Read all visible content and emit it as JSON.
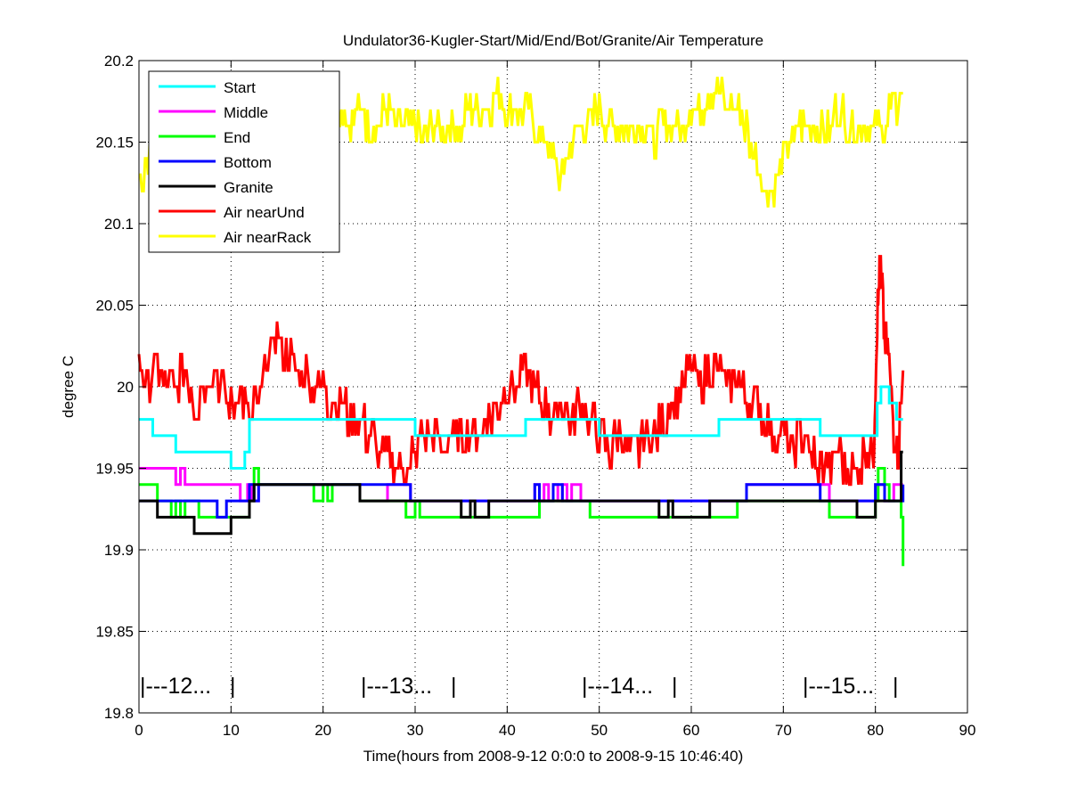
{
  "chart_data": {
    "type": "line",
    "title": "Undulator36-Kugler-Start/Mid/End/Bot/Granite/Air Temperature",
    "xlabel": "Time(hours from 2008-9-12 0:0:0 to 2008-9-15 10:46:40)",
    "ylabel": "degree C",
    "xlim": [
      0,
      90
    ],
    "ylim": [
      19.8,
      20.2
    ],
    "xticks": [
      "0",
      "10",
      "20",
      "30",
      "40",
      "50",
      "60",
      "70",
      "80",
      "90"
    ],
    "yticks": [
      "19.8",
      "19.85",
      "19.9",
      "19.95",
      "20",
      "20.05",
      "20.1",
      "20.15",
      "20.2"
    ],
    "grid": true,
    "legend_position": "top-left",
    "day_markers": [
      {
        "hour": 0,
        "label": "|---12...   |"
      },
      {
        "hour": 24,
        "label": "|---13...   |"
      },
      {
        "hour": 48,
        "label": "|---14...   |"
      },
      {
        "hour": 72,
        "label": "|---15...   |"
      }
    ],
    "series": [
      {
        "name": "Start",
        "color": "#00ffff",
        "style": "step",
        "points": [
          [
            0,
            19.98
          ],
          [
            1.5,
            19.97
          ],
          [
            4,
            19.96
          ],
          [
            10,
            19.95
          ],
          [
            11.5,
            19.96
          ],
          [
            12,
            19.98
          ],
          [
            30,
            19.97
          ],
          [
            42,
            19.98
          ],
          [
            50,
            19.97
          ],
          [
            63,
            19.98
          ],
          [
            74,
            19.97
          ],
          [
            80.2,
            19.99
          ],
          [
            80.6,
            20.0
          ],
          [
            81.5,
            19.99
          ],
          [
            82.3,
            19.98
          ],
          [
            83,
            19.98
          ]
        ]
      },
      {
        "name": "Middle",
        "color": "#ff00ff",
        "style": "step",
        "points": [
          [
            0,
            19.95
          ],
          [
            4,
            19.94
          ],
          [
            4.5,
            19.95
          ],
          [
            5,
            19.94
          ],
          [
            11,
            19.93
          ],
          [
            11.8,
            19.94
          ],
          [
            12.2,
            19.93
          ],
          [
            13,
            19.94
          ],
          [
            24,
            19.93
          ],
          [
            27,
            19.94
          ],
          [
            29.5,
            19.93
          ],
          [
            43,
            19.94
          ],
          [
            43.5,
            19.93
          ],
          [
            44,
            19.94
          ],
          [
            44.5,
            19.93
          ],
          [
            45,
            19.94
          ],
          [
            45.5,
            19.93
          ],
          [
            46,
            19.94
          ],
          [
            46.5,
            19.93
          ],
          [
            47,
            19.94
          ],
          [
            48,
            19.93
          ],
          [
            66,
            19.94
          ],
          [
            75,
            19.93
          ],
          [
            80,
            19.94
          ],
          [
            81,
            19.93
          ],
          [
            82,
            19.94
          ],
          [
            83,
            19.94
          ]
        ]
      },
      {
        "name": "End",
        "color": "#00ff00",
        "style": "step",
        "points": [
          [
            0,
            19.94
          ],
          [
            2,
            19.93
          ],
          [
            3.5,
            19.92
          ],
          [
            4,
            19.93
          ],
          [
            4.5,
            19.92
          ],
          [
            5,
            19.93
          ],
          [
            6.5,
            19.92
          ],
          [
            12,
            19.93
          ],
          [
            12.5,
            19.95
          ],
          [
            13,
            19.94
          ],
          [
            19,
            19.93
          ],
          [
            20,
            19.94
          ],
          [
            20.5,
            19.93
          ],
          [
            21,
            19.94
          ],
          [
            24,
            19.93
          ],
          [
            29,
            19.92
          ],
          [
            30,
            19.93
          ],
          [
            30.5,
            19.92
          ],
          [
            43.5,
            19.93
          ],
          [
            49,
            19.92
          ],
          [
            65,
            19.93
          ],
          [
            75,
            19.92
          ],
          [
            80,
            19.93
          ],
          [
            80.3,
            19.95
          ],
          [
            81,
            19.94
          ],
          [
            81.5,
            19.93
          ],
          [
            82.8,
            19.92
          ],
          [
            83,
            19.89
          ]
        ]
      },
      {
        "name": "Bottom",
        "color": "#0000ff",
        "style": "step",
        "points": [
          [
            0,
            19.93
          ],
          [
            8.5,
            19.92
          ],
          [
            9.5,
            19.93
          ],
          [
            12,
            19.94
          ],
          [
            12.5,
            19.93
          ],
          [
            13,
            19.94
          ],
          [
            24,
            19.94
          ],
          [
            26,
            19.94
          ],
          [
            29.5,
            19.93
          ],
          [
            43,
            19.94
          ],
          [
            43.5,
            19.93
          ],
          [
            45,
            19.94
          ],
          [
            46,
            19.93
          ],
          [
            66,
            19.94
          ],
          [
            74,
            19.93
          ],
          [
            80,
            19.94
          ],
          [
            81,
            19.93
          ],
          [
            83,
            19.94
          ]
        ]
      },
      {
        "name": "Granite",
        "color": "#000000",
        "style": "step",
        "points": [
          [
            0,
            19.93
          ],
          [
            2,
            19.92
          ],
          [
            6,
            19.91
          ],
          [
            10,
            19.92
          ],
          [
            12,
            19.93
          ],
          [
            12.5,
            19.94
          ],
          [
            24,
            19.93
          ],
          [
            35,
            19.92
          ],
          [
            36,
            19.93
          ],
          [
            36.5,
            19.92
          ],
          [
            38,
            19.93
          ],
          [
            56.5,
            19.92
          ],
          [
            57.5,
            19.93
          ],
          [
            58,
            19.92
          ],
          [
            62,
            19.93
          ],
          [
            78,
            19.92
          ],
          [
            80,
            19.93
          ],
          [
            82.8,
            19.96
          ],
          [
            83,
            19.96
          ]
        ]
      },
      {
        "name": "Air nearUnd",
        "color": "#ff0000",
        "style": "noisy",
        "points": [
          [
            0,
            20.01
          ],
          [
            1,
            20.0
          ],
          [
            2,
            20.01
          ],
          [
            3,
            20.0
          ],
          [
            4,
            20.0
          ],
          [
            5,
            20.01
          ],
          [
            6,
            19.99
          ],
          [
            7,
            20.0
          ],
          [
            8,
            20.01
          ],
          [
            9,
            20.0
          ],
          [
            10,
            19.99
          ],
          [
            11,
            20.0
          ],
          [
            12,
            19.98
          ],
          [
            13,
            19.99
          ],
          [
            14,
            20.02
          ],
          [
            15,
            20.03
          ],
          [
            16,
            20.02
          ],
          [
            17,
            20.01
          ],
          [
            18,
            20.01
          ],
          [
            19,
            20.0
          ],
          [
            20,
            20.0
          ],
          [
            21,
            19.99
          ],
          [
            22,
            19.99
          ],
          [
            23,
            19.98
          ],
          [
            24,
            19.98
          ],
          [
            25,
            19.97
          ],
          [
            26,
            19.96
          ],
          [
            27,
            19.96
          ],
          [
            28,
            19.95
          ],
          [
            29,
            19.95
          ],
          [
            30,
            19.96
          ],
          [
            31,
            19.97
          ],
          [
            32,
            19.97
          ],
          [
            33,
            19.96
          ],
          [
            34,
            19.97
          ],
          [
            35,
            19.97
          ],
          [
            36,
            19.97
          ],
          [
            37,
            19.97
          ],
          [
            38,
            19.98
          ],
          [
            39,
            19.99
          ],
          [
            40,
            20.0
          ],
          [
            41,
            20.0
          ],
          [
            42,
            20.01
          ],
          [
            43,
            20.0
          ],
          [
            44,
            19.99
          ],
          [
            45,
            19.98
          ],
          [
            46,
            19.99
          ],
          [
            47,
            19.98
          ],
          [
            48,
            19.99
          ],
          [
            49,
            19.98
          ],
          [
            50,
            19.97
          ],
          [
            51,
            19.96
          ],
          [
            52,
            19.97
          ],
          [
            53,
            19.96
          ],
          [
            54,
            19.96
          ],
          [
            55,
            19.97
          ],
          [
            56,
            19.97
          ],
          [
            57,
            19.98
          ],
          [
            58,
            19.99
          ],
          [
            59,
            20.0
          ],
          [
            60,
            20.01
          ],
          [
            61,
            20.0
          ],
          [
            62,
            20.01
          ],
          [
            63,
            20.01
          ],
          [
            64,
            20.0
          ],
          [
            65,
            20.01
          ],
          [
            66,
            19.99
          ],
          [
            67,
            19.99
          ],
          [
            68,
            19.98
          ],
          [
            69,
            19.97
          ],
          [
            70,
            19.97
          ],
          [
            71,
            19.96
          ],
          [
            72,
            19.97
          ],
          [
            73,
            19.96
          ],
          [
            74,
            19.95
          ],
          [
            75,
            19.95
          ],
          [
            76,
            19.96
          ],
          [
            77,
            19.95
          ],
          [
            78,
            19.95
          ],
          [
            79,
            19.96
          ],
          [
            79.8,
            19.96
          ],
          [
            80.2,
            20.04
          ],
          [
            80.5,
            20.08
          ],
          [
            81,
            20.03
          ],
          [
            81.5,
            20.02
          ],
          [
            82,
            19.97
          ],
          [
            82.5,
            19.96
          ],
          [
            83,
            20.01
          ]
        ]
      },
      {
        "name": "Air nearRack",
        "color": "#ffff00",
        "style": "noisy",
        "points": [
          [
            0,
            20.13
          ],
          [
            1,
            20.14
          ],
          [
            2,
            20.15
          ],
          [
            3,
            20.16
          ],
          [
            4,
            20.15
          ],
          [
            5,
            20.16
          ],
          [
            6,
            20.15
          ],
          [
            7,
            20.16
          ],
          [
            8,
            20.16
          ],
          [
            9,
            20.16
          ],
          [
            10,
            20.15
          ],
          [
            11,
            20.16
          ],
          [
            12,
            20.16
          ],
          [
            13,
            20.15
          ],
          [
            14,
            20.16
          ],
          [
            15,
            20.16
          ],
          [
            16,
            20.17
          ],
          [
            17,
            20.16
          ],
          [
            18,
            20.16
          ],
          [
            19,
            20.16
          ],
          [
            20,
            20.16
          ],
          [
            21,
            20.16
          ],
          [
            22,
            20.17
          ],
          [
            23,
            20.16
          ],
          [
            24,
            20.17
          ],
          [
            25,
            20.16
          ],
          [
            26,
            20.16
          ],
          [
            27,
            20.17
          ],
          [
            28,
            20.16
          ],
          [
            29,
            20.16
          ],
          [
            30,
            20.16
          ],
          [
            31,
            20.15
          ],
          [
            32,
            20.16
          ],
          [
            33,
            20.16
          ],
          [
            34,
            20.16
          ],
          [
            35,
            20.16
          ],
          [
            36,
            20.17
          ],
          [
            37,
            20.17
          ],
          [
            38,
            20.17
          ],
          [
            39,
            20.18
          ],
          [
            40,
            20.17
          ],
          [
            41,
            20.17
          ],
          [
            42,
            20.17
          ],
          [
            43,
            20.16
          ],
          [
            44,
            20.15
          ],
          [
            45,
            20.14
          ],
          [
            46,
            20.13
          ],
          [
            47,
            20.15
          ],
          [
            48,
            20.16
          ],
          [
            49,
            20.16
          ],
          [
            50,
            20.17
          ],
          [
            51,
            20.16
          ],
          [
            52,
            20.16
          ],
          [
            53,
            20.16
          ],
          [
            54,
            20.16
          ],
          [
            55,
            20.16
          ],
          [
            56,
            20.15
          ],
          [
            57,
            20.16
          ],
          [
            58,
            20.16
          ],
          [
            59,
            20.16
          ],
          [
            60,
            20.17
          ],
          [
            61,
            20.17
          ],
          [
            62,
            20.18
          ],
          [
            63,
            20.18
          ],
          [
            64,
            20.17
          ],
          [
            65,
            20.17
          ],
          [
            66,
            20.16
          ],
          [
            67,
            20.14
          ],
          [
            68,
            20.12
          ],
          [
            69,
            20.12
          ],
          [
            70,
            20.14
          ],
          [
            71,
            20.15
          ],
          [
            72,
            20.16
          ],
          [
            73,
            20.16
          ],
          [
            74,
            20.16
          ],
          [
            75,
            20.16
          ],
          [
            76,
            20.17
          ],
          [
            77,
            20.16
          ],
          [
            78,
            20.16
          ],
          [
            79,
            20.16
          ],
          [
            80,
            20.16
          ],
          [
            81,
            20.16
          ],
          [
            82,
            20.17
          ],
          [
            83,
            20.18
          ]
        ]
      }
    ]
  }
}
